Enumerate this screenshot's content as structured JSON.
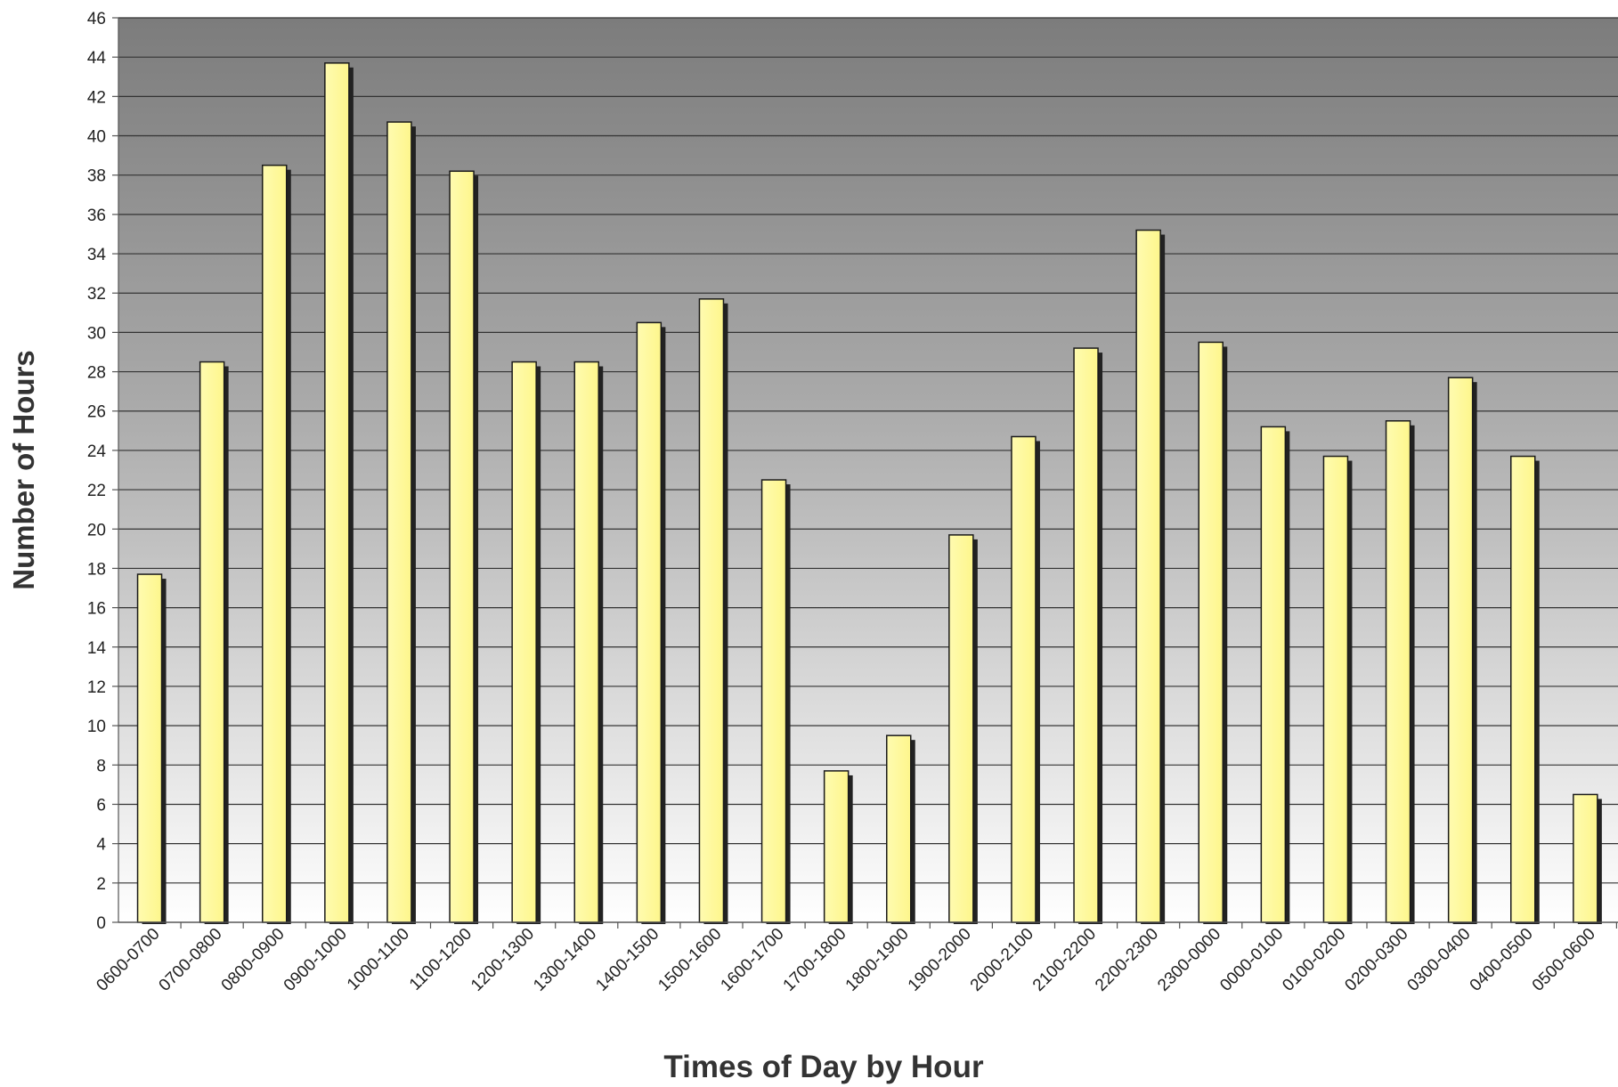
{
  "chart_data": {
    "type": "bar",
    "title": "",
    "xlabel": "Times of Day by Hour",
    "ylabel": "Number of Hours",
    "ylim": [
      0,
      46
    ],
    "y_ticks": [
      0,
      2,
      4,
      6,
      8,
      10,
      12,
      14,
      16,
      18,
      20,
      22,
      24,
      26,
      28,
      30,
      32,
      34,
      36,
      38,
      40,
      42,
      44,
      46
    ],
    "grid": true,
    "legend": "none",
    "categories": [
      "0600-0700",
      "0700-0800",
      "0800-0900",
      "0900-1000",
      "1000-1100",
      "1100-1200",
      "1200-1300",
      "1300-1400",
      "1400-1500",
      "1500-1600",
      "1600-1700",
      "1700-1800",
      "1800-1900",
      "1900-2000",
      "2000-2100",
      "2100-2200",
      "2200-2300",
      "2300-0000",
      "0000-0100",
      "0100-0200",
      "0200-0300",
      "0300-0400",
      "0400-0500",
      "0500-0600"
    ],
    "values": [
      17.7,
      28.5,
      38.5,
      43.7,
      40.7,
      38.2,
      28.5,
      28.5,
      30.5,
      31.7,
      22.5,
      7.7,
      9.5,
      19.7,
      24.7,
      29.2,
      35.2,
      29.5,
      25.2,
      23.7,
      25.5,
      27.7,
      23.7,
      6.5
    ],
    "colors": {
      "bar_face": "#fdf68c",
      "bar_edge": "#1a1a1a",
      "bar_shadow": "#222222",
      "plot_top": "#7c7c7c",
      "plot_bottom": "#ffffff",
      "gridline": "#333333"
    }
  }
}
